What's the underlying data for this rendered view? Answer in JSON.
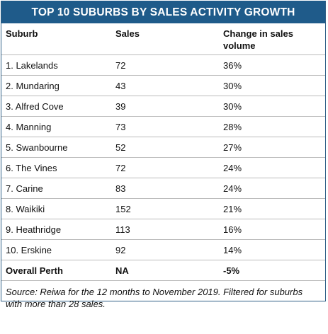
{
  "title": "TOP 10 SUBURBS BY SALES ACTIVITY GROWTH",
  "columns": {
    "suburb": "Suburb",
    "sales": "Sales",
    "change": "Change in sales volume"
  },
  "rows": [
    {
      "suburb": "1. Lakelands",
      "sales": "72",
      "change": "36%"
    },
    {
      "suburb": "2. Mundaring",
      "sales": "43",
      "change": "30%"
    },
    {
      "suburb": "3. Alfred Cove",
      "sales": "39",
      "change": "30%"
    },
    {
      "suburb": "4. Manning",
      "sales": "73",
      "change": "28%"
    },
    {
      "suburb": "5. Swanbourne",
      "sales": "52",
      "change": "27%"
    },
    {
      "suburb": "6. The Vines",
      "sales": "72",
      "change": "24%"
    },
    {
      "suburb": "7. Carine",
      "sales": "83",
      "change": "24%"
    },
    {
      "suburb": "8. Waikiki",
      "sales": "152",
      "change": "21%"
    },
    {
      "suburb": "9. Heathridge",
      "sales": "113",
      "change": "16%"
    },
    {
      "suburb": "10. Erskine",
      "sales": "92",
      "change": "14%"
    }
  ],
  "overall": {
    "suburb": "Overall Perth",
    "sales": "NA",
    "change": "-5%"
  },
  "source": "Source: Reiwa for the 12 months to November 2019. Filtered for suburbs with more than 28 sales.",
  "colors": {
    "header_bg": "#1f5b8a",
    "header_text": "#ffffff",
    "row_divider": "#bcbcbc"
  }
}
